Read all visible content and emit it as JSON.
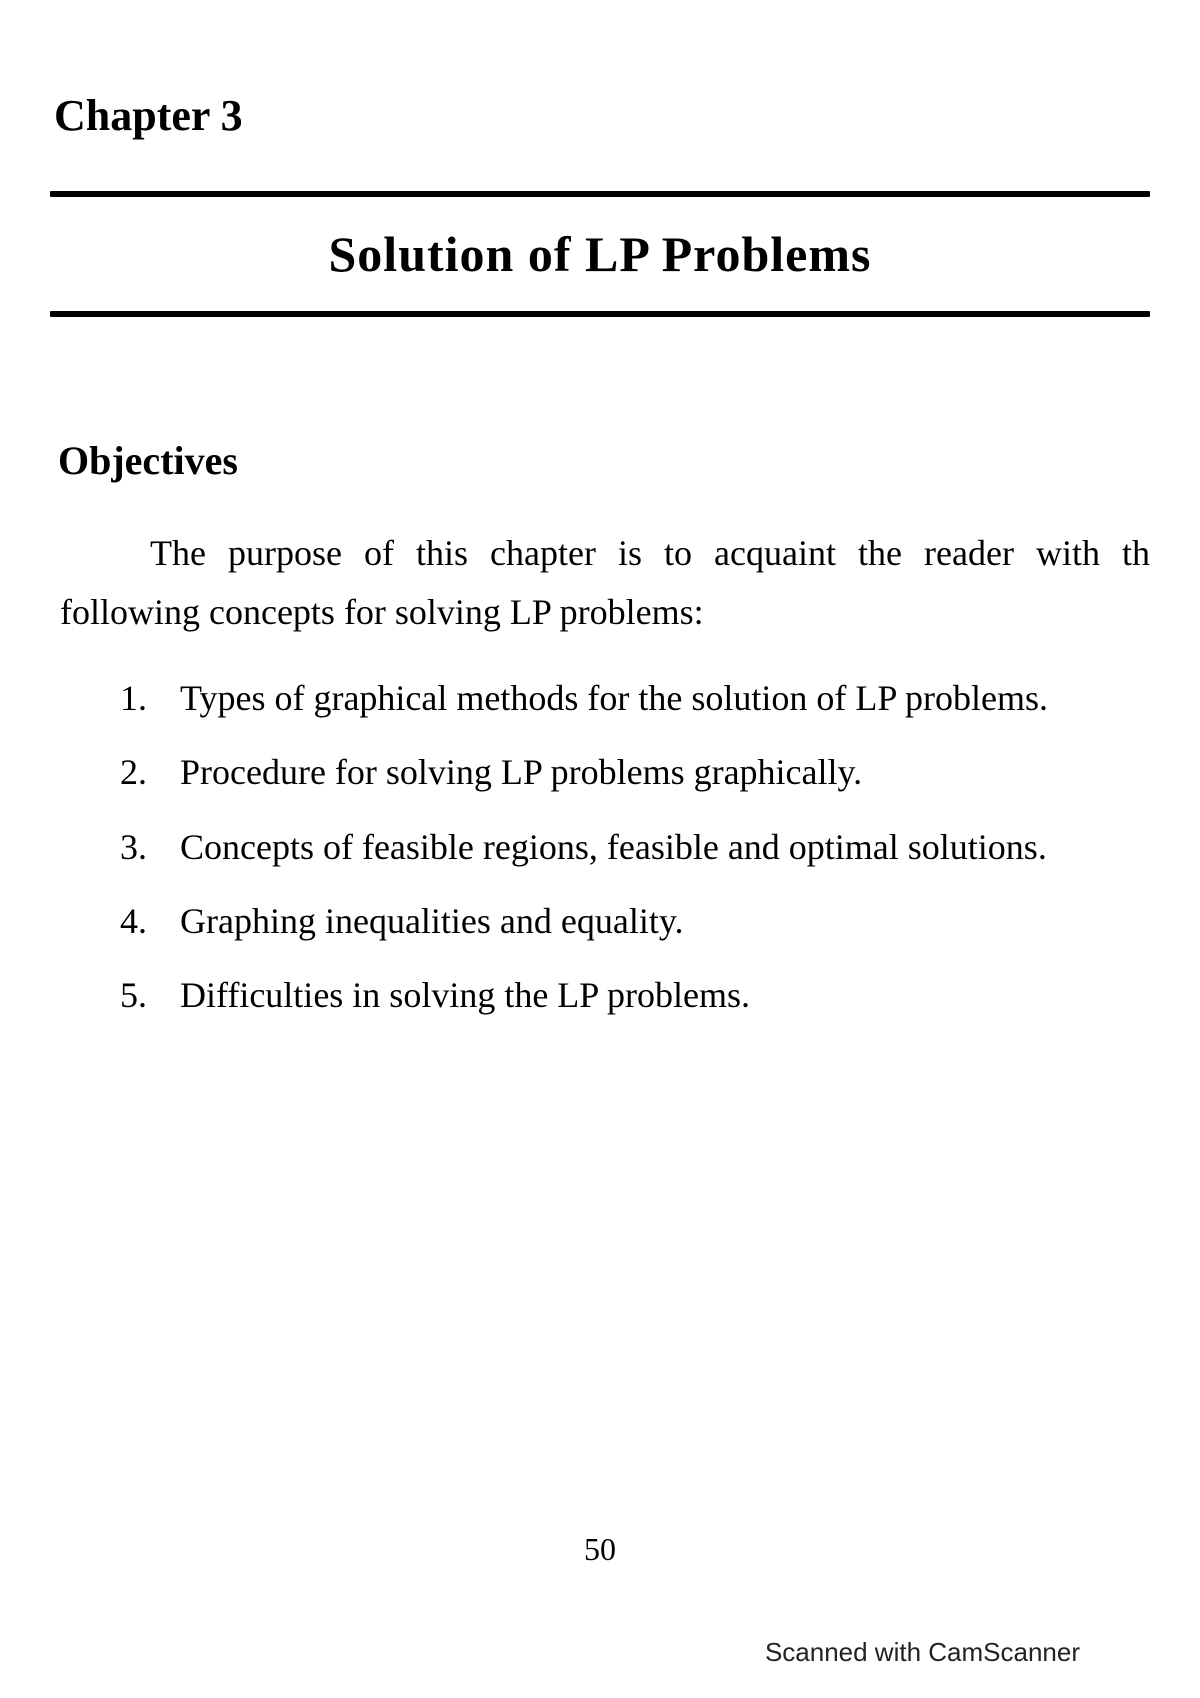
{
  "chapter": {
    "label": "Chapter  3",
    "title": "Solution  of  LP  Problems"
  },
  "objectives": {
    "heading": "Objectives",
    "intro": "The purpose of this chapter is to acquaint the reader with th following concepts for solving LP problems:",
    "items": [
      {
        "num": "1.",
        "text": "Types of graphical methods for the solution of LP problems."
      },
      {
        "num": "2.",
        "text": "Procedure for solving LP problems graphically."
      },
      {
        "num": "3.",
        "text": "Concepts of feasible regions, feasible and optimal solutions."
      },
      {
        "num": "4.",
        "text": "Graphing inequalities and equality."
      },
      {
        "num": "5.",
        "text": "Difficulties in solving the LP problems."
      }
    ]
  },
  "page_number": "50",
  "watermark": "Scanned with CamScanner",
  "styling": {
    "background_color": "#ffffff",
    "text_color": "#000000",
    "font_family": "Georgia, Times New Roman, serif",
    "chapter_label_fontsize": 44,
    "chapter_title_fontsize": 50,
    "objectives_heading_fontsize": 40,
    "body_fontsize": 36,
    "page_number_fontsize": 32,
    "watermark_fontsize": 26,
    "divider_color": "#000000",
    "divider_height": 6
  }
}
